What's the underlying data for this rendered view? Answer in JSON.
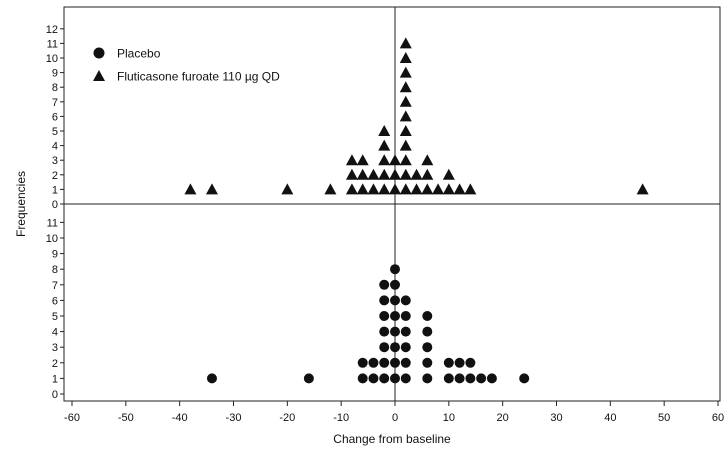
{
  "chart_data": {
    "type": "scatter",
    "xlabel": "Change from baseline",
    "ylabel": "Frequencies",
    "xlim": [
      -60,
      60
    ],
    "x_ticks": [
      -60,
      -50,
      -40,
      -30,
      -20,
      -10,
      0,
      10,
      20,
      30,
      40,
      50,
      60
    ],
    "y_ticks": [
      0,
      1,
      2,
      3,
      4,
      5,
      6,
      7,
      8,
      9,
      10,
      11,
      12
    ],
    "panel_ylim": [
      0,
      12
    ],
    "legend_position": "top-left",
    "reference_lines": {
      "vertical_at_x": 0,
      "panel_divider": true
    },
    "series": [
      {
        "name": "Placebo",
        "marker": "circle",
        "panel": "bottom",
        "color": "#111111",
        "points": [
          {
            "x": -34,
            "y": 1
          },
          {
            "x": -16,
            "y": 1
          },
          {
            "x": -6,
            "y": 1
          },
          {
            "x": -6,
            "y": 2
          },
          {
            "x": -4,
            "y": 1
          },
          {
            "x": -4,
            "y": 2
          },
          {
            "x": -2,
            "y": 1
          },
          {
            "x": -2,
            "y": 2
          },
          {
            "x": -2,
            "y": 3
          },
          {
            "x": -2,
            "y": 4
          },
          {
            "x": -2,
            "y": 5
          },
          {
            "x": -2,
            "y": 6
          },
          {
            "x": -2,
            "y": 7
          },
          {
            "x": 0,
            "y": 1
          },
          {
            "x": 0,
            "y": 2
          },
          {
            "x": 0,
            "y": 3
          },
          {
            "x": 0,
            "y": 4
          },
          {
            "x": 0,
            "y": 5
          },
          {
            "x": 0,
            "y": 6
          },
          {
            "x": 0,
            "y": 7
          },
          {
            "x": 0,
            "y": 8
          },
          {
            "x": 2,
            "y": 1
          },
          {
            "x": 2,
            "y": 2
          },
          {
            "x": 2,
            "y": 3
          },
          {
            "x": 2,
            "y": 4
          },
          {
            "x": 2,
            "y": 5
          },
          {
            "x": 2,
            "y": 6
          },
          {
            "x": 6,
            "y": 1
          },
          {
            "x": 6,
            "y": 2
          },
          {
            "x": 6,
            "y": 3
          },
          {
            "x": 6,
            "y": 4
          },
          {
            "x": 6,
            "y": 5
          },
          {
            "x": 10,
            "y": 1
          },
          {
            "x": 10,
            "y": 2
          },
          {
            "x": 12,
            "y": 1
          },
          {
            "x": 12,
            "y": 2
          },
          {
            "x": 14,
            "y": 1
          },
          {
            "x": 14,
            "y": 2
          },
          {
            "x": 16,
            "y": 1
          },
          {
            "x": 18,
            "y": 1
          },
          {
            "x": 24,
            "y": 1
          }
        ]
      },
      {
        "name": "Fluticasone furoate 110 µg QD",
        "marker": "triangle",
        "panel": "top",
        "color": "#111111",
        "points": [
          {
            "x": -38,
            "y": 1
          },
          {
            "x": -34,
            "y": 1
          },
          {
            "x": -20,
            "y": 1
          },
          {
            "x": -12,
            "y": 1
          },
          {
            "x": -8,
            "y": 1
          },
          {
            "x": -8,
            "y": 2
          },
          {
            "x": -8,
            "y": 3
          },
          {
            "x": -6,
            "y": 1
          },
          {
            "x": -6,
            "y": 2
          },
          {
            "x": -6,
            "y": 3
          },
          {
            "x": -4,
            "y": 1
          },
          {
            "x": -4,
            "y": 2
          },
          {
            "x": -2,
            "y": 1
          },
          {
            "x": -2,
            "y": 2
          },
          {
            "x": -2,
            "y": 3
          },
          {
            "x": -2,
            "y": 4
          },
          {
            "x": -2,
            "y": 5
          },
          {
            "x": 0,
            "y": 1
          },
          {
            "x": 0,
            "y": 2
          },
          {
            "x": 0,
            "y": 3
          },
          {
            "x": 2,
            "y": 1
          },
          {
            "x": 2,
            "y": 2
          },
          {
            "x": 2,
            "y": 3
          },
          {
            "x": 2,
            "y": 4
          },
          {
            "x": 2,
            "y": 5
          },
          {
            "x": 2,
            "y": 6
          },
          {
            "x": 2,
            "y": 7
          },
          {
            "x": 2,
            "y": 8
          },
          {
            "x": 2,
            "y": 9
          },
          {
            "x": 2,
            "y": 10
          },
          {
            "x": 2,
            "y": 11
          },
          {
            "x": 4,
            "y": 1
          },
          {
            "x": 4,
            "y": 2
          },
          {
            "x": 6,
            "y": 1
          },
          {
            "x": 6,
            "y": 2
          },
          {
            "x": 6,
            "y": 3
          },
          {
            "x": 8,
            "y": 1
          },
          {
            "x": 10,
            "y": 1
          },
          {
            "x": 10,
            "y": 2
          },
          {
            "x": 12,
            "y": 1
          },
          {
            "x": 14,
            "y": 1
          },
          {
            "x": 46,
            "y": 1
          }
        ]
      }
    ]
  }
}
